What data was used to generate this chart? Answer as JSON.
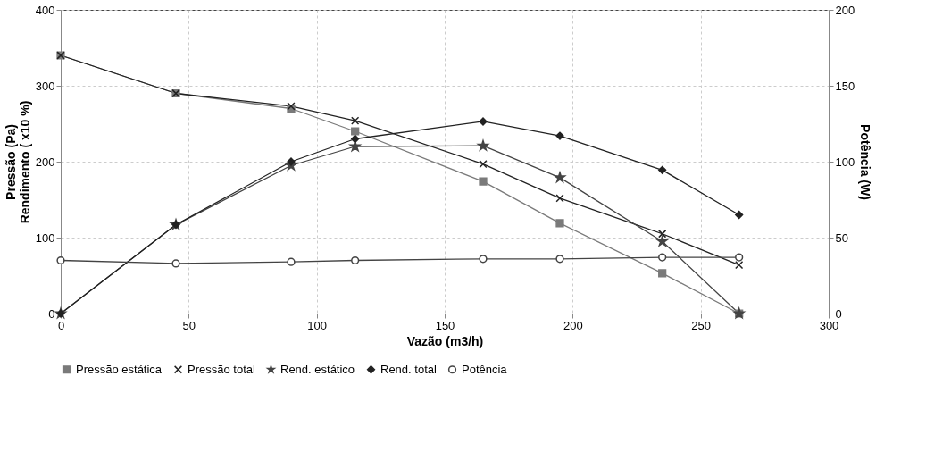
{
  "chart_data": {
    "type": "line",
    "xlabel": "Vazão (m3/h)",
    "ylabel": "Pressão (Pa)\nRendimento ( x10 %)",
    "y2label": "Potência (W)",
    "x": [
      0,
      45,
      90,
      115,
      165,
      195,
      235,
      265
    ],
    "xlim": [
      0,
      300
    ],
    "xticks": [
      0,
      50,
      100,
      150,
      200,
      250,
      300
    ],
    "ylim": [
      0,
      400
    ],
    "yticks": [
      0,
      100,
      200,
      300,
      400
    ],
    "y2lim": [
      0,
      200
    ],
    "y2ticks": [
      0,
      50,
      100,
      150,
      200
    ],
    "grid": true,
    "legend": "bottom",
    "line_style": "solid",
    "series": [
      {
        "name": "Pressão estática",
        "color": "#7a7a7a",
        "marker": "square",
        "values": [
          340,
          290,
          270,
          240,
          174,
          119,
          53,
          0
        ]
      },
      {
        "name": "Pressão total",
        "color": "#222222",
        "marker": "cross",
        "values": [
          340,
          290,
          273,
          254,
          197,
          152,
          105,
          64
        ]
      },
      {
        "name": "Rend. estático",
        "color": "#444444",
        "marker": "star",
        "values": [
          0,
          117,
          195,
          220,
          221,
          179,
          95,
          0
        ]
      },
      {
        "name": "Rend. total",
        "color": "#222222",
        "marker": "diamond",
        "values": [
          0,
          117,
          200,
          230,
          253,
          234,
          189,
          130
        ]
      },
      {
        "name": "Potência",
        "color": "#444444",
        "marker": "circle",
        "axis": "y2",
        "values": [
          35,
          33,
          34,
          35,
          36,
          36,
          37,
          37
        ]
      }
    ]
  }
}
